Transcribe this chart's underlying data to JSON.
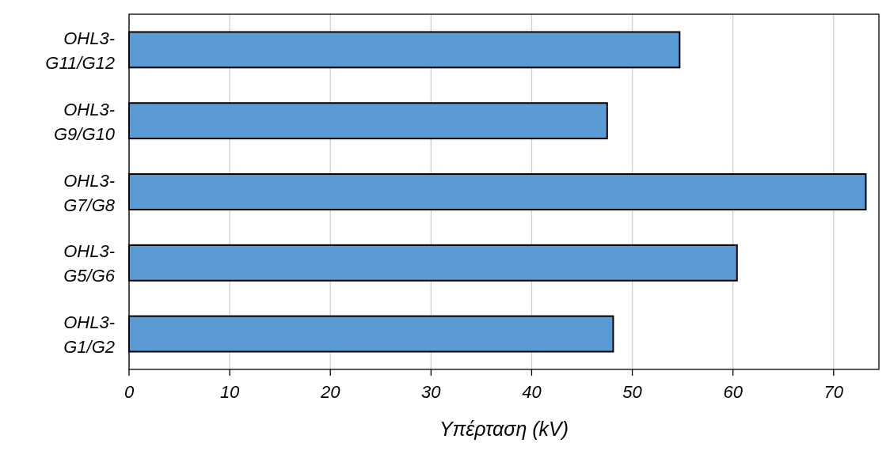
{
  "chart_data": {
    "type": "bar",
    "orientation": "horizontal",
    "xlabel": "Υπέρταση (kV)",
    "categories": [
      "OHL3-G11/G12",
      "OHL3-G9/G10",
      "OHL3-G7/G8",
      "OHL3-G5/G6",
      "OHL3-G1/G2"
    ],
    "values": [
      54.7,
      47.5,
      73.2,
      60.4,
      48.1
    ],
    "color": "#5b9bd5",
    "xlim": [
      0,
      74.5
    ],
    "xticks": [
      0,
      10,
      20,
      30,
      40,
      50,
      60,
      70
    ],
    "grid": "x"
  }
}
